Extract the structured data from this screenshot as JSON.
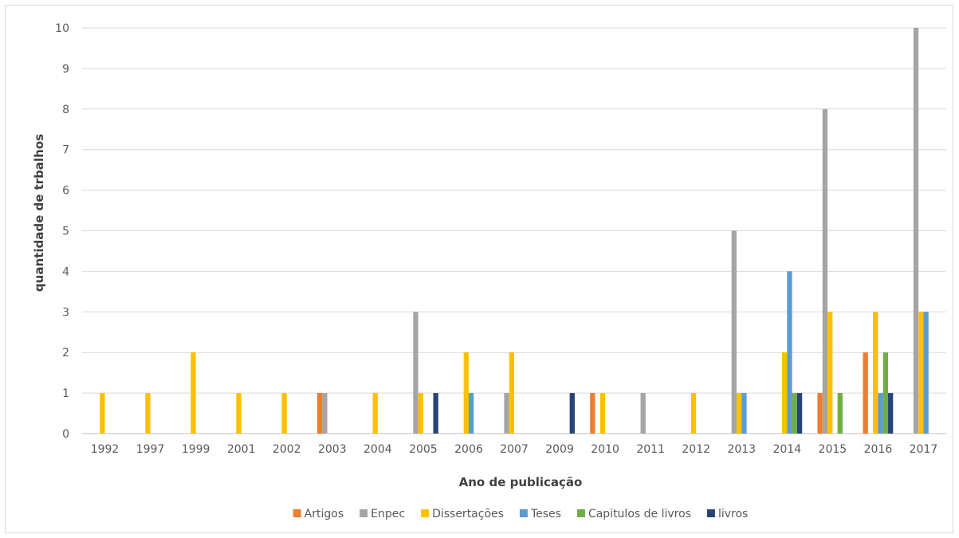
{
  "chart_data": {
    "type": "bar",
    "title": "",
    "xlabel": "Ano de publicação",
    "ylabel": "quantidade de trbalhos",
    "ylim": [
      0,
      10
    ],
    "yticks": [
      0,
      1,
      2,
      3,
      4,
      5,
      6,
      7,
      8,
      9,
      10
    ],
    "grid": true,
    "legend_position": "bottom",
    "categories": [
      "1992",
      "1997",
      "1999",
      "2001",
      "2002",
      "2003",
      "2004",
      "2005",
      "2006",
      "2007",
      "2009",
      "2010",
      "2011",
      "2012",
      "2013",
      "2014",
      "2015",
      "2016",
      "2017"
    ],
    "series": [
      {
        "name": "Artigos",
        "color": "#ed7d31",
        "values": [
          0,
          0,
          0,
          0,
          0,
          1,
          0,
          0,
          0,
          0,
          0,
          1,
          0,
          0,
          0,
          0,
          1,
          2,
          0
        ]
      },
      {
        "name": "Enpec",
        "color": "#a5a5a5",
        "values": [
          0,
          0,
          0,
          0,
          0,
          1,
          0,
          3,
          0,
          1,
          0,
          0,
          1,
          0,
          5,
          0,
          8,
          0,
          10
        ]
      },
      {
        "name": "Dissertações",
        "color": "#ffc000",
        "values": [
          1,
          1,
          2,
          1,
          1,
          0,
          1,
          1,
          2,
          2,
          0,
          1,
          0,
          1,
          1,
          2,
          3,
          3,
          3
        ]
      },
      {
        "name": "Teses",
        "color": "#5b9bd5",
        "values": [
          0,
          0,
          0,
          0,
          0,
          0,
          0,
          0,
          1,
          0,
          0,
          0,
          0,
          0,
          1,
          4,
          0,
          1,
          3
        ]
      },
      {
        "name": "Capitulos de livros",
        "color": "#70ad47",
        "values": [
          0,
          0,
          0,
          0,
          0,
          0,
          0,
          0,
          0,
          0,
          0,
          0,
          0,
          0,
          0,
          1,
          1,
          2,
          0
        ]
      },
      {
        "name": "livros",
        "color": "#264478",
        "values": [
          0,
          0,
          0,
          0,
          0,
          0,
          0,
          1,
          0,
          0,
          1,
          0,
          0,
          0,
          0,
          1,
          0,
          1,
          0
        ]
      }
    ]
  },
  "colors": {
    "gridline": "#d9d9d9",
    "axis": "#bfbfbf"
  }
}
